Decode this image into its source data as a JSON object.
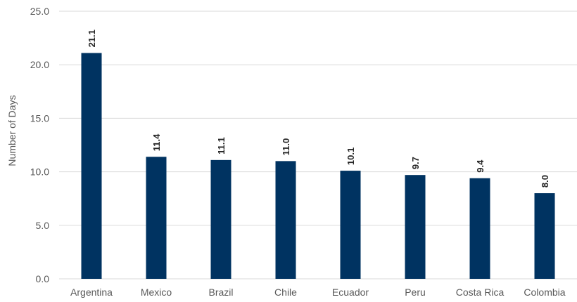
{
  "chart_data": {
    "type": "bar",
    "title": "",
    "xlabel": "",
    "ylabel": "Number of Days",
    "categories": [
      "Argentina",
      "Mexico",
      "Brazil",
      "Chile",
      "Ecuador",
      "Peru",
      "Costa Rica",
      "Colombia"
    ],
    "values": [
      21.1,
      11.4,
      11.1,
      11.0,
      10.1,
      9.7,
      9.4,
      8.0
    ],
    "data_labels": [
      "21.1",
      "11.4",
      "11.1",
      "11.0",
      "10.1",
      "9.7",
      "9.4",
      "8.0"
    ],
    "ylim": [
      0,
      25
    ],
    "y_ticks": [
      "0.0",
      "5.0",
      "10.0",
      "15.0",
      "20.0",
      "25.0"
    ],
    "grid": true,
    "legend": "none",
    "bar_color": "#003361"
  }
}
